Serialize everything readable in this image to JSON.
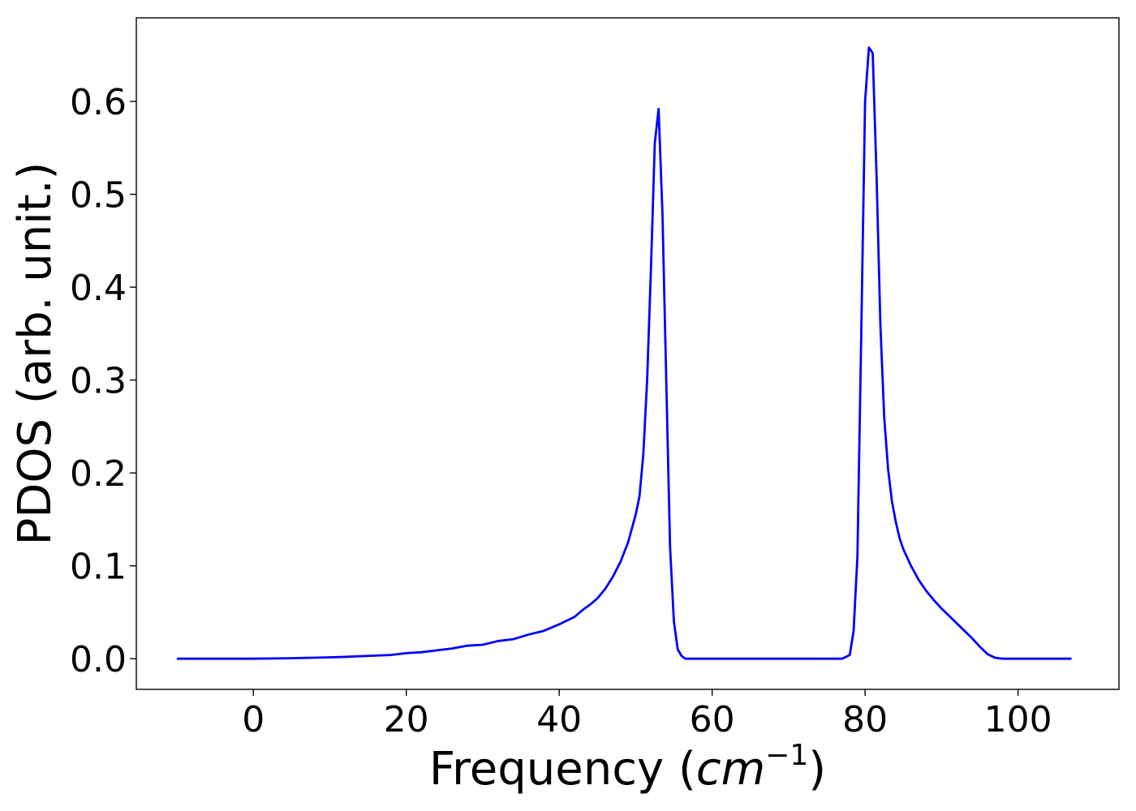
{
  "chart_data": {
    "type": "line",
    "xlabel_prefix": "Frequency (",
    "xlabel_unit_base": "cm",
    "xlabel_unit_exp": "−1",
    "xlabel_suffix": ")",
    "ylabel": "PDOS (arb. unit.)",
    "xlim": [
      -15.3,
      113.2
    ],
    "ylim": [
      -0.033,
      0.69
    ],
    "xticks": [
      {
        "value": 0,
        "label": "0"
      },
      {
        "value": 20,
        "label": "20"
      },
      {
        "value": 40,
        "label": "40"
      },
      {
        "value": 60,
        "label": "60"
      },
      {
        "value": 80,
        "label": "80"
      },
      {
        "value": 100,
        "label": "100"
      }
    ],
    "yticks": [
      {
        "value": 0.0,
        "label": "0.0"
      },
      {
        "value": 0.1,
        "label": "0.1"
      },
      {
        "value": 0.2,
        "label": "0.2"
      },
      {
        "value": 0.3,
        "label": "0.3"
      },
      {
        "value": 0.4,
        "label": "0.4"
      },
      {
        "value": 0.5,
        "label": "0.5"
      },
      {
        "value": 0.6,
        "label": "0.6"
      }
    ],
    "grid": false,
    "series": [
      {
        "color": "#0000ff",
        "x": [
          -10,
          0,
          5,
          10,
          12,
          15,
          18,
          20,
          22,
          24,
          26,
          28,
          30,
          32,
          34,
          36,
          38,
          40,
          42,
          43,
          44,
          45,
          46,
          47,
          48,
          49,
          50,
          50.5,
          51,
          51.5,
          52,
          52.5,
          53,
          53.5,
          54,
          54.5,
          55,
          55.5,
          56,
          56.5,
          57,
          60,
          70,
          77,
          78,
          78.5,
          79,
          79.5,
          80,
          80.5,
          81,
          81.5,
          82,
          82.5,
          83,
          83.5,
          84,
          84.5,
          85,
          86,
          87,
          88,
          89,
          90,
          92,
          94,
          95,
          96,
          97,
          98,
          99,
          100,
          107
        ],
        "y": [
          0.0,
          0.0,
          0.0005,
          0.0015,
          0.002,
          0.003,
          0.004,
          0.006,
          0.007,
          0.009,
          0.011,
          0.014,
          0.015,
          0.019,
          0.021,
          0.026,
          0.03,
          0.037,
          0.045,
          0.052,
          0.058,
          0.065,
          0.075,
          0.088,
          0.104,
          0.125,
          0.155,
          0.175,
          0.22,
          0.3,
          0.42,
          0.555,
          0.592,
          0.48,
          0.3,
          0.12,
          0.04,
          0.01,
          0.003,
          0.0,
          0.0,
          0.0,
          0.0,
          0.0,
          0.004,
          0.03,
          0.11,
          0.35,
          0.6,
          0.658,
          0.652,
          0.52,
          0.36,
          0.26,
          0.205,
          0.17,
          0.148,
          0.13,
          0.118,
          0.1,
          0.085,
          0.073,
          0.063,
          0.054,
          0.038,
          0.022,
          0.013,
          0.005,
          0.001,
          0.0,
          0.0,
          0.0,
          0.0
        ]
      }
    ]
  }
}
